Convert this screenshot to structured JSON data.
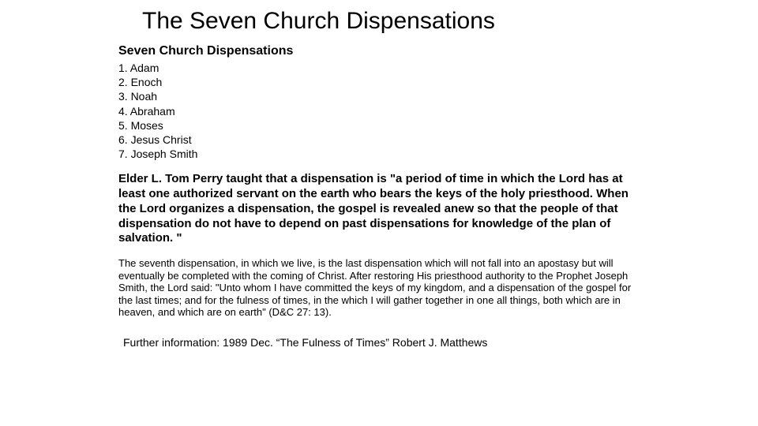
{
  "title": "The Seven Church Dispensations",
  "subtitle": "Seven Church Dispensations",
  "list": [
    "1. Adam",
    "2. Enoch",
    "3. Noah",
    "4. Abraham",
    "5. Moses",
    "6. Jesus Christ",
    "7. Joseph Smith"
  ],
  "quote": "Elder L. Tom Perry taught that a dispensation is \"a period of time in which the Lord has at least one authorized servant on the earth who bears the keys of the holy priesthood. When the Lord organizes a dispensation, the gospel is revealed anew so that the people of that dispensation do not have to depend on past dispensations for knowledge of the plan of salvation. \"",
  "body": "The seventh dispensation, in which we live, is the last dispensation which will not fall into an apostasy but will eventually be completed with the coming of Christ. After restoring His priesthood authority to the Prophet Joseph Smith, the Lord said: \"Unto whom I have committed the keys of my kingdom, and a dispensation of the gospel for the last times; and for the fulness of times, in the which I will gather together in one all things, both which are in heaven, and which are on earth\" (D&C 27: 13).",
  "further": "Further information: 1989 Dec. “The Fulness of Times” Robert J. Matthews",
  "colors": {
    "background": "#ffffff",
    "text": "#000000"
  },
  "typography": {
    "title_fontsize": 30,
    "subtitle_fontsize": 16,
    "list_fontsize": 14,
    "quote_fontsize": 15,
    "body_fontsize": 13,
    "further_fontsize": 14
  }
}
